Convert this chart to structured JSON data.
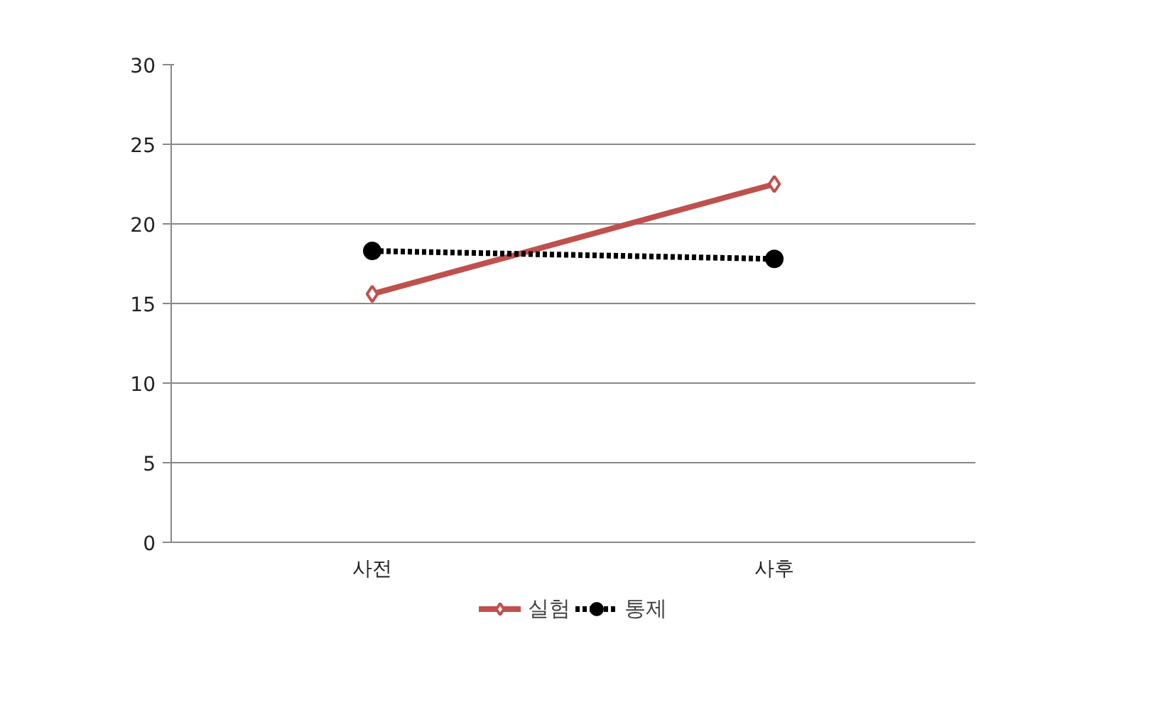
{
  "chart_data": {
    "type": "line",
    "categories": [
      "사전",
      "사후"
    ],
    "series": [
      {
        "name": "실험",
        "color": "#c0504d",
        "values": [
          15.6,
          22.5
        ],
        "marker": "diamond",
        "line_style": "solid"
      },
      {
        "name": "통제",
        "color": "#000000",
        "values": [
          18.3,
          17.8
        ],
        "marker": "circle",
        "line_style": "dotted"
      }
    ],
    "ylim": [
      0,
      30
    ],
    "yticks": [
      0,
      5,
      10,
      15,
      20,
      25,
      30
    ],
    "grid": "y",
    "legend": "bottom"
  }
}
